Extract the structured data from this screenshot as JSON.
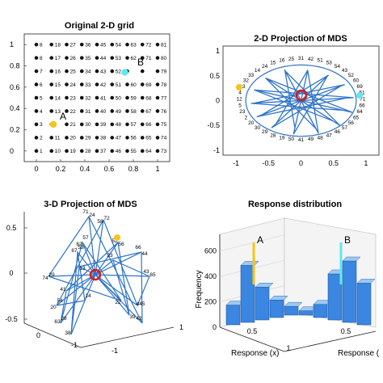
{
  "colors": {
    "line": "#2f74c9",
    "bar_front": "#3a86e0",
    "bar_top": "#9cc8f5",
    "bar_side": "#1f5fb0",
    "point_a": "#f5c518",
    "point_b": "#5ee8f0",
    "marker": "#d81b1b",
    "axis": "#222222"
  },
  "panels": {
    "grid": {
      "title": "Original 2-D grid",
      "annot_a": "A",
      "annot_b": "B"
    },
    "mds2d": {
      "title": "2-D Projection of MDS"
    },
    "mds3d": {
      "title": "3-D Projection of MDS"
    },
    "resp": {
      "title": "Response distribution",
      "ylabel": "Frequency",
      "xlabel": "Response (x)",
      "xlabel2": "Response (",
      "annot_a": "A",
      "annot_b": "B"
    }
  },
  "chart_data": [
    {
      "type": "scatter",
      "title": "Original 2-D grid",
      "xlim": [
        -0.1,
        1.1
      ],
      "ylim": [
        -0.1,
        1.1
      ],
      "xticks": [
        "0",
        "0.2",
        "0.4",
        "0.6",
        "0.8",
        "1"
      ],
      "yticks": [
        "0",
        "0.2",
        "0.4",
        "0.6",
        "0.8",
        "1"
      ],
      "grid_cols": 9,
      "grid_rows": 9,
      "labels_by_row_top_to_bottom": [
        [
          "8",
          "18",
          "27",
          "36",
          "45",
          "54",
          "63",
          "72",
          "81"
        ],
        [
          "8",
          "17",
          "26",
          "35",
          "44",
          "53",
          "62",
          "71",
          "80"
        ],
        [
          "7",
          "16",
          "25",
          "34",
          "43",
          "52",
          "",
          "",
          "79"
        ],
        [
          "6",
          "15",
          "24",
          "33",
          "42",
          "51",
          "60",
          "69",
          "78"
        ],
        [
          "5",
          "14",
          "23",
          "32",
          "41",
          "50",
          "59",
          "68",
          "77"
        ],
        [
          "4",
          "13",
          "22",
          "31",
          "40",
          "49",
          "58",
          "67",
          "76"
        ],
        [
          "3",
          "",
          "21",
          "30",
          "39",
          "48",
          "57",
          "66",
          "75"
        ],
        [
          "2",
          "11",
          "20",
          "29",
          "38",
          "47",
          "56",
          "65",
          "74"
        ],
        [
          "1",
          "10",
          "19",
          "28",
          "37",
          "46",
          "55",
          "64",
          "73"
        ]
      ],
      "point_a": {
        "x": 0.14,
        "y": 0.25
      },
      "point_b": {
        "x": 0.73,
        "y": 0.74
      }
    },
    {
      "type": "line",
      "title": "2-D Projection of MDS",
      "xlim": [
        -1.2,
        1.2
      ],
      "ylim": [
        -1.1,
        1.1
      ],
      "xticks": [
        "-1",
        "-0.5",
        "0",
        "0.5",
        "1"
      ],
      "yticks": [
        "1",
        "0.5",
        "0",
        "-0.5",
        "-1"
      ],
      "visible_labels": [
        "25",
        "16",
        "15",
        "24",
        "14",
        "33",
        "32",
        "13",
        "4",
        "12",
        "5",
        "23",
        "2",
        "20",
        "30",
        "29",
        "28",
        "19",
        "50",
        "41",
        "49",
        "48",
        "47",
        "46",
        "57",
        "56",
        "65",
        "64",
        "66",
        "71",
        "61",
        "69",
        "60",
        "52",
        "43",
        "54",
        "53",
        "51",
        "42",
        "31"
      ],
      "marker": {
        "x": 0.0,
        "y": 0.0
      },
      "point_a": {
        "x": -0.88,
        "y": 0.08
      },
      "point_b": {
        "x": 0.83,
        "y": 0.0
      }
    },
    {
      "type": "line",
      "title": "3-D Projection of MDS",
      "yticks": [
        "0.5",
        "0",
        "-0.5"
      ],
      "xticks": [
        "-1",
        "0",
        "1"
      ],
      "extra_ticks": [
        "-1",
        "1"
      ],
      "visible_labels": [
        "71",
        "72",
        "62",
        "53",
        "52",
        "44",
        "43",
        "29",
        "20",
        "28",
        "38",
        "39",
        "42",
        "445",
        "22",
        "14",
        "41",
        "13",
        "33",
        "24",
        "58",
        "57",
        "67",
        "56",
        "66",
        "65",
        "74",
        "54",
        "63"
      ]
    },
    {
      "type": "bar",
      "title": "Response distribution",
      "xlabel": "Response (x)",
      "ylabel": "Frequency",
      "ylim": [
        0,
        700
      ],
      "yticks": [
        0,
        200,
        400,
        600
      ],
      "xticks": [
        "0.5",
        "1",
        "0.5"
      ],
      "front_row_values": [
        180,
        520,
        300,
        160,
        80,
        40,
        120,
        420,
        560,
        380
      ],
      "annotations": [
        "A",
        "B"
      ]
    }
  ]
}
